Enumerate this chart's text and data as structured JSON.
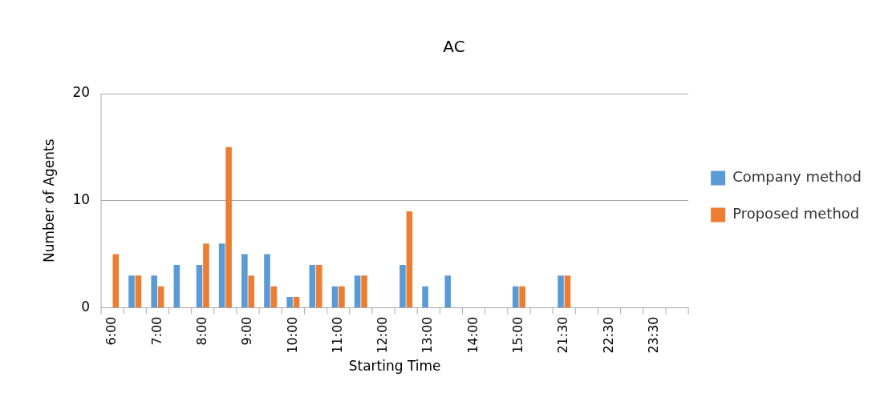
{
  "chart_data": {
    "type": "bar",
    "title": "AC",
    "xlabel": "Starting Time",
    "ylabel": "Number of Agents",
    "categories": [
      "6:00",
      null,
      "7:00",
      null,
      "8:00",
      null,
      "9:00",
      null,
      "10:00",
      null,
      "11:00",
      null,
      "12:00",
      null,
      "13:00",
      null,
      "14:00",
      null,
      "15:00",
      null,
      "21:30",
      null,
      "22:30",
      null,
      "23:30",
      null
    ],
    "series": [
      {
        "name": "Company method",
        "color": "#5b9bd5",
        "values": [
          0,
          3,
          3,
          4,
          4,
          6,
          5,
          5,
          1,
          4,
          2,
          3,
          0,
          4,
          2,
          3,
          0,
          0,
          2,
          0,
          3,
          0,
          0,
          0,
          0,
          0
        ]
      },
      {
        "name": "Proposed method",
        "color": "#ed7d31",
        "values": [
          5,
          3,
          2,
          0,
          6,
          15,
          3,
          2,
          1,
          4,
          2,
          3,
          0,
          9,
          0,
          0,
          0,
          0,
          2,
          0,
          3,
          0,
          0,
          0,
          0,
          0
        ]
      }
    ],
    "ylim": [
      0,
      20
    ],
    "yticks": [
      0,
      10,
      20
    ],
    "grid": "y",
    "legend": "right"
  }
}
